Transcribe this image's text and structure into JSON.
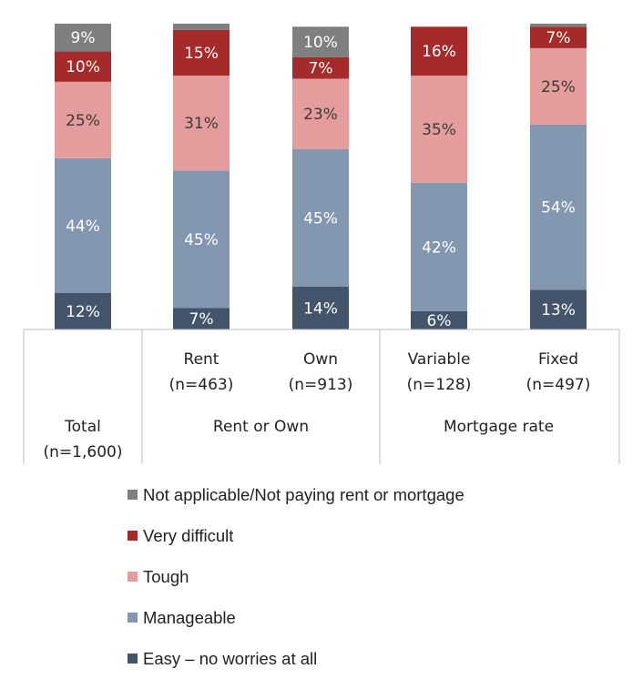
{
  "chart_data": {
    "type": "bar",
    "stacked": true,
    "groups": [
      {
        "label": "",
        "categories": [
          {
            "line1": "Total",
            "line2": "(n=1,600)"
          }
        ]
      },
      {
        "label": "Rent or Own",
        "categories": [
          {
            "line1": "Rent",
            "line2": "(n=463)"
          },
          {
            "line1": "Own",
            "line2": "(n=913)"
          }
        ]
      },
      {
        "label": "Mortgage rate",
        "categories": [
          {
            "line1": "Variable",
            "line2": "(n=128)"
          },
          {
            "line1": "Fixed",
            "line2": "(n=497)"
          }
        ]
      }
    ],
    "series": [
      {
        "name": "Easy – no worries at all",
        "color": "#44546a",
        "values": [
          12,
          7,
          14,
          6,
          13
        ],
        "labels": [
          "12%",
          "7%",
          "14%",
          "6%",
          "13%"
        ]
      },
      {
        "name": "Manageable",
        "color": "#8497b0",
        "values": [
          44,
          45,
          45,
          42,
          54
        ],
        "labels": [
          "44%",
          "45%",
          "45%",
          "42%",
          "54%"
        ]
      },
      {
        "name": "Tough",
        "color": "#e59c9c",
        "values": [
          25,
          31,
          23,
          35,
          25
        ],
        "labels": [
          "25%",
          "31%",
          "23%",
          "35%",
          "25%"
        ]
      },
      {
        "name": "Very difficult",
        "color": "#a52a2a",
        "values": [
          10,
          15,
          7,
          16,
          7
        ],
        "labels": [
          "10%",
          "15%",
          "7%",
          "16%",
          "7%"
        ]
      },
      {
        "name": "Not applicable/Not paying rent or mortgage",
        "color": "#7f7f7f",
        "values": [
          9,
          2,
          10,
          0,
          1
        ],
        "labels": [
          "9%",
          "",
          "10%",
          "",
          ""
        ]
      }
    ],
    "ylim": [
      0,
      100
    ],
    "legend_position": "bottom"
  }
}
